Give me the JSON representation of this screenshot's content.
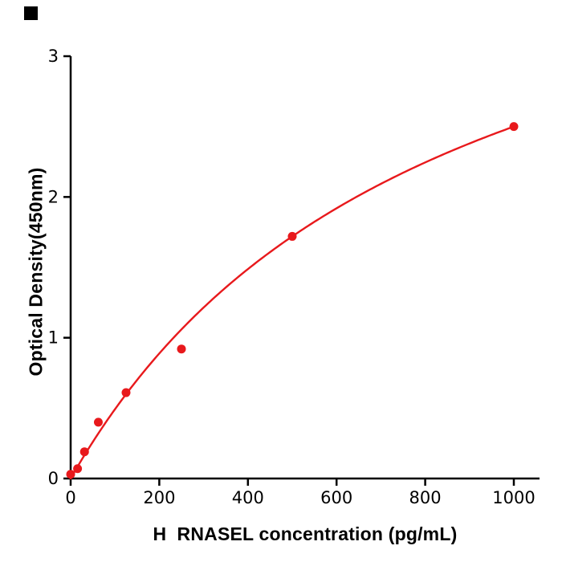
{
  "page": {
    "background": "#ffffff",
    "corner_marker_color": "#000000"
  },
  "chart_data": {
    "type": "scatter",
    "title": "",
    "xlabel": "H  RNASEL concentration (pg/mL)",
    "ylabel": "Optical Density(450nm)",
    "x": [
      0,
      15.6,
      31.25,
      62.5,
      125,
      250,
      500,
      1000
    ],
    "y": [
      0.03,
      0.07,
      0.19,
      0.4,
      0.61,
      0.92,
      1.72,
      2.5
    ],
    "xlim": [
      0,
      1000
    ],
    "ylim": [
      0,
      3
    ],
    "xticks": [
      0,
      200,
      400,
      600,
      800,
      1000
    ],
    "yticks": [
      0,
      1,
      2,
      3
    ],
    "grid": false,
    "legend": false,
    "point_color": "#e8191c",
    "curve_color": "#e8191c",
    "axis_color": "#000000",
    "tick_label_color": "#000000",
    "fit": {
      "type": "michaelis_menten",
      "a": 4.575,
      "b": 830
    }
  }
}
